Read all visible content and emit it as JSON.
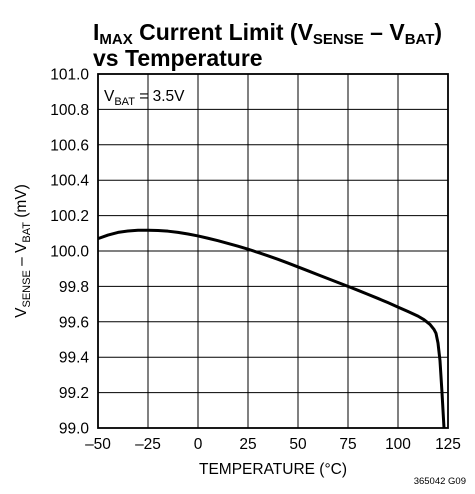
{
  "chart_data": {
    "type": "line",
    "title": {
      "line1": {
        "main": "I",
        "sub1": "MAX",
        "mid": " Current Limit (V",
        "sub2": "SENSE",
        "mid2": " – V",
        "sub3": "BAT",
        "end": ")"
      },
      "line2": "vs Temperature"
    },
    "xlabel": "TEMPERATURE (°C)",
    "ylabel": {
      "a": "V",
      "a_sub": "SENSE",
      "b": " – V",
      "b_sub": "BAT",
      "c": " (mV)"
    },
    "xlim": [
      -50,
      125
    ],
    "ylim": [
      99.0,
      101.0
    ],
    "x_ticks": [
      -50,
      -25,
      0,
      25,
      50,
      75,
      100,
      125
    ],
    "x_tick_labels": [
      "–50",
      "–25",
      "0",
      "25",
      "50",
      "75",
      "100",
      "125"
    ],
    "y_ticks": [
      99.0,
      99.2,
      99.4,
      99.6,
      99.8,
      100.0,
      100.2,
      100.4,
      100.6,
      100.8,
      101.0
    ],
    "y_tick_labels": [
      "99.0",
      "99.2",
      "99.4",
      "99.6",
      "99.8",
      "100.0",
      "100.2",
      "100.4",
      "100.6",
      "100.8",
      "101.0"
    ],
    "grid": true,
    "annotation": {
      "a": "V",
      "a_sub": "BAT",
      "b": " = 3.5V"
    },
    "figure_code": "365042 G09",
    "series": [
      {
        "color": "#000000",
        "x": [
          -50,
          -45,
          -40,
          -35,
          -30,
          -25,
          -20,
          -15,
          -10,
          -5,
          0,
          5,
          10,
          15,
          20,
          25,
          30,
          35,
          40,
          45,
          50,
          55,
          60,
          65,
          70,
          75,
          80,
          85,
          90,
          95,
          100,
          105,
          110,
          113,
          116,
          118,
          119,
          120,
          121,
          122,
          123
        ],
        "y": [
          100.07,
          100.09,
          100.105,
          100.113,
          100.117,
          100.117,
          100.116,
          100.112,
          100.105,
          100.096,
          100.085,
          100.072,
          100.058,
          100.043,
          100.027,
          100.01,
          99.992,
          99.973,
          99.953,
          99.932,
          99.91,
          99.888,
          99.866,
          99.844,
          99.822,
          99.8,
          99.778,
          99.755,
          99.732,
          99.708,
          99.683,
          99.658,
          99.632,
          99.612,
          99.585,
          99.557,
          99.535,
          99.48,
          99.38,
          99.2,
          99.0
        ]
      }
    ]
  }
}
